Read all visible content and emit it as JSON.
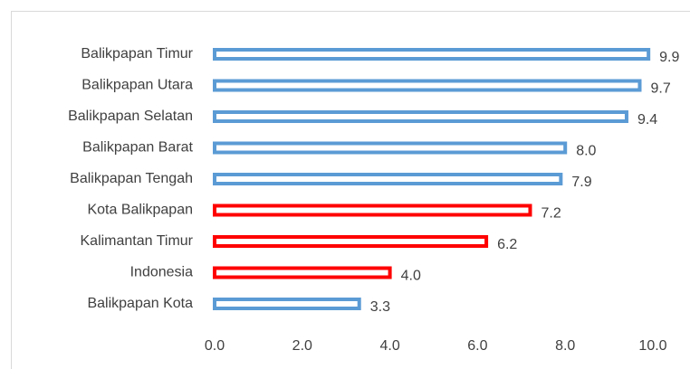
{
  "chart_data": {
    "type": "barh",
    "categories": [
      "Balikpapan Timur",
      "Balikpapan Utara",
      "Balikpapan Selatan",
      "Balikpapan Barat",
      "Balikpapan Tengah",
      "Kota Balikpapan",
      "Kalimantan Timur",
      "Indonesia",
      "Balikpapan Kota"
    ],
    "values": [
      9.9,
      9.7,
      9.4,
      8.0,
      7.9,
      7.2,
      6.2,
      4.0,
      3.3
    ],
    "value_labels": [
      "9.9",
      "9.7",
      "9.4",
      "8.0",
      "7.9",
      "7.2",
      "6.2",
      "4.0",
      "3.3"
    ],
    "colors": [
      "#5b9bd5",
      "#5b9bd5",
      "#5b9bd5",
      "#5b9bd5",
      "#5b9bd5",
      "#ff0000",
      "#ff0000",
      "#ff0000",
      "#5b9bd5"
    ],
    "xlim": [
      0,
      10
    ],
    "xticks": [
      {
        "value": 0,
        "label": "0.0"
      },
      {
        "value": 2,
        "label": "2.0"
      },
      {
        "value": 4,
        "label": "4.0"
      },
      {
        "value": 6,
        "label": "6.0"
      },
      {
        "value": 8,
        "label": "8.0"
      },
      {
        "value": 10,
        "label": "10.0"
      }
    ],
    "grid": false
  }
}
